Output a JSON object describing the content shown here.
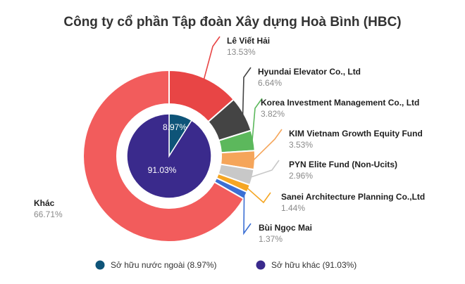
{
  "chart_data": {
    "type": "pie",
    "title": "Công ty cổ phần Tập đoàn Xây dựng Hoà Bình (HBC)",
    "outer_ring": [
      {
        "name": "Lê Viết Hải",
        "value": 13.53,
        "label": "13.53%",
        "color": "#e84545"
      },
      {
        "name": "Hyundai Elevator Co., Ltd",
        "value": 6.64,
        "label": "6.64%",
        "color": "#444444"
      },
      {
        "name": "Korea Investment Management Co., Ltd",
        "value": 3.82,
        "label": "3.82%",
        "color": "#5cb85c"
      },
      {
        "name": "KIM Vietnam Growth Equity Fund",
        "value": 3.53,
        "label": "3.53%",
        "color": "#f5a55a"
      },
      {
        "name": "PYN Elite Fund (Non-Ucits)",
        "value": 2.96,
        "label": "2.96%",
        "color": "#c8c8c8"
      },
      {
        "name": "Sanei Architecture Planning Co.,Ltd",
        "value": 1.44,
        "label": "1.44%",
        "color": "#f5a623"
      },
      {
        "name": "Bùi Ngọc Mai",
        "value": 1.37,
        "label": "1.37%",
        "color": "#3b6fd4"
      },
      {
        "name": "Khác",
        "value": 66.71,
        "label": "66.71%",
        "color": "#f25c5c"
      }
    ],
    "inner_pie": [
      {
        "name": "Sở hữu nước ngoài",
        "value": 8.97,
        "label": "8.97%",
        "color": "#0e5478"
      },
      {
        "name": "Sở hữu khác",
        "value": 91.03,
        "label": "91.03%",
        "color": "#3a2a8c"
      }
    ],
    "legend": [
      {
        "text": "Sở hữu nước ngoài (8.97%)",
        "color": "#0e5478"
      },
      {
        "text": "Sở hữu khác (91.03%)",
        "color": "#3a2a8c"
      }
    ],
    "legend_position": "bottom"
  }
}
